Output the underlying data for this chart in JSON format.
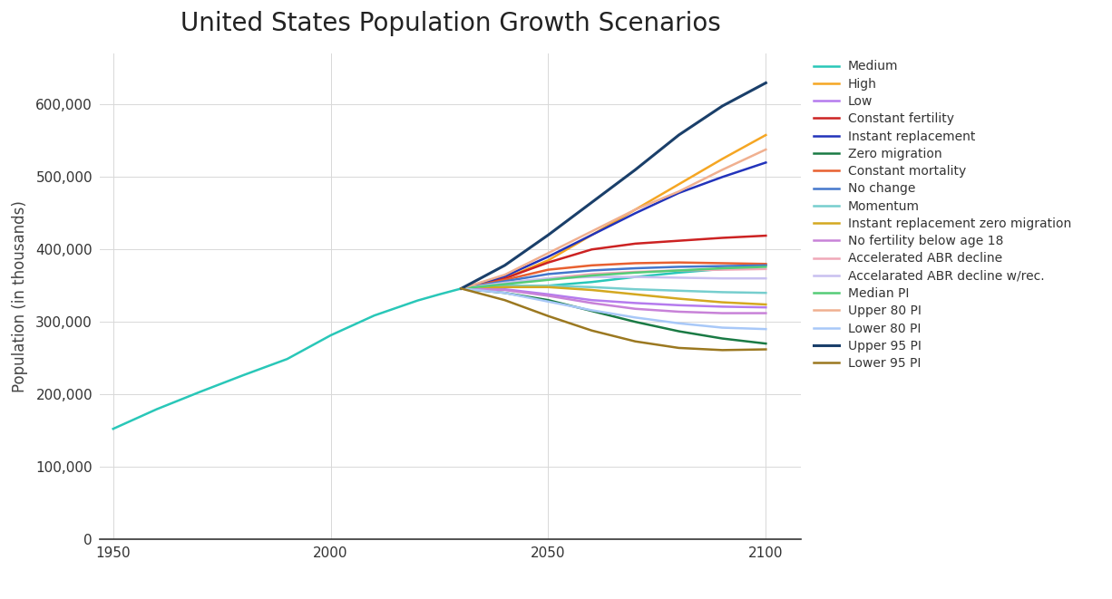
{
  "title": "United States Population Growth Scenarios",
  "ylabel": "Population (in thousands)",
  "background_color": "#ffffff",
  "grid_color": "#d8d8d8",
  "title_fontsize": 20,
  "label_fontsize": 12,
  "tick_fontsize": 11,
  "years_historical": [
    1950,
    1960,
    1970,
    1980,
    1990,
    2000,
    2010,
    2020,
    2025,
    2030,
    2040,
    2050
  ],
  "historical_medium": [
    152271,
    179323,
    203392,
    226542,
    248710,
    281422,
    308746,
    329500,
    338000,
    346000,
    349000,
    350000
  ],
  "years_projection": [
    2030,
    2040,
    2050,
    2060,
    2070,
    2080,
    2090,
    2100
  ],
  "series": [
    {
      "label": "Medium",
      "color": "#29c7b8",
      "lw": 1.8,
      "values": [
        346000,
        349000,
        350000,
        355000,
        362000,
        368000,
        373000,
        379000
      ]
    },
    {
      "label": "High",
      "color": "#f5a623",
      "lw": 1.8,
      "values": [
        346000,
        360000,
        385000,
        420000,
        455000,
        490000,
        525000,
        558000
      ]
    },
    {
      "label": "Low",
      "color": "#b57bee",
      "lw": 1.8,
      "values": [
        346000,
        345000,
        338000,
        330000,
        326000,
        323000,
        321000,
        320000
      ]
    },
    {
      "label": "Constant fertility",
      "color": "#cc2222",
      "lw": 1.8,
      "values": [
        346000,
        360000,
        382000,
        400000,
        408000,
        412000,
        416000,
        419000
      ]
    },
    {
      "label": "Instant replacement",
      "color": "#2233bb",
      "lw": 1.8,
      "values": [
        346000,
        363000,
        390000,
        420000,
        450000,
        478000,
        500000,
        520000
      ]
    },
    {
      "label": "Zero migration",
      "color": "#1a7a44",
      "lw": 1.8,
      "values": [
        346000,
        340000,
        330000,
        315000,
        300000,
        287000,
        277000,
        270000
      ]
    },
    {
      "label": "Constant mortality",
      "color": "#e86030",
      "lw": 1.8,
      "values": [
        346000,
        358000,
        372000,
        378000,
        381000,
        382000,
        381000,
        380000
      ]
    },
    {
      "label": "No change",
      "color": "#4477cc",
      "lw": 1.8,
      "values": [
        346000,
        356000,
        366000,
        371000,
        374000,
        376000,
        377000,
        378000
      ]
    },
    {
      "label": "Momentum",
      "color": "#76cece",
      "lw": 1.8,
      "values": [
        346000,
        350000,
        350000,
        348000,
        345000,
        343000,
        341000,
        340000
      ]
    },
    {
      "label": "Instant replacement zero migration",
      "color": "#d4a820",
      "lw": 1.8,
      "values": [
        346000,
        348000,
        348000,
        344000,
        338000,
        332000,
        327000,
        324000
      ]
    },
    {
      "label": "No fertility below age 18",
      "color": "#c882d8",
      "lw": 1.8,
      "values": [
        346000,
        344000,
        336000,
        326000,
        318000,
        314000,
        312000,
        312000
      ]
    },
    {
      "label": "Accelerated ABR decline",
      "color": "#f0a8b8",
      "lw": 1.8,
      "values": [
        346000,
        353000,
        360000,
        366000,
        369000,
        371000,
        372000,
        373000
      ]
    },
    {
      "label": "Accelarated ABR decline w/rec.",
      "color": "#c8c0f0",
      "lw": 1.8,
      "values": [
        346000,
        354000,
        360000,
        362000,
        362000,
        361000,
        360000,
        360000
      ]
    },
    {
      "label": "Median PI",
      "color": "#55cc77",
      "lw": 1.8,
      "values": [
        346000,
        352000,
        358000,
        364000,
        368000,
        371000,
        374000,
        376000
      ]
    },
    {
      "label": "Upper 80 PI",
      "color": "#f0b090",
      "lw": 1.8,
      "values": [
        346000,
        365000,
        395000,
        425000,
        455000,
        480000,
        510000,
        538000
      ]
    },
    {
      "label": "Lower 80 PI",
      "color": "#a8c8f8",
      "lw": 1.8,
      "values": [
        346000,
        340000,
        328000,
        316000,
        306000,
        298000,
        292000,
        290000
      ]
    },
    {
      "label": "Upper 95 PI",
      "color": "#1a3f6a",
      "lw": 2.2,
      "values": [
        346000,
        378000,
        420000,
        465000,
        510000,
        558000,
        598000,
        630000
      ]
    },
    {
      "label": "Lower 95 PI",
      "color": "#9b7820",
      "lw": 1.8,
      "values": [
        346000,
        330000,
        308000,
        288000,
        273000,
        264000,
        261000,
        262000
      ]
    }
  ]
}
